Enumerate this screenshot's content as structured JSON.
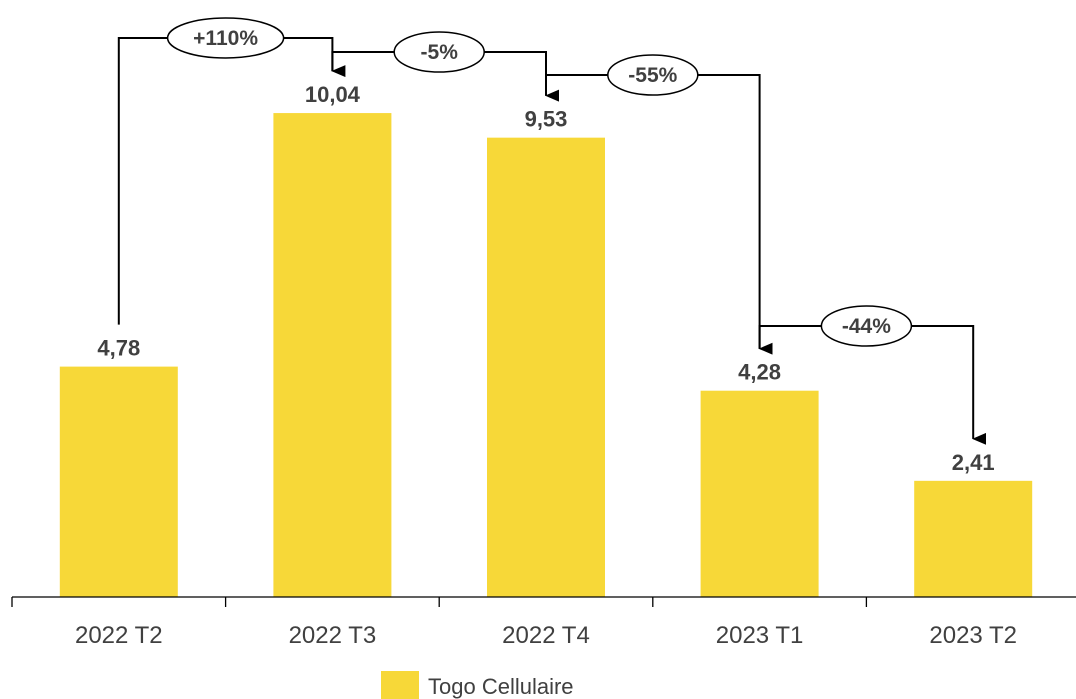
{
  "chart_data": {
    "type": "bar",
    "categories": [
      "2022 T2",
      "2022 T3",
      "2022 T4",
      "2023 T1",
      "2023 T2"
    ],
    "series": [
      {
        "name": "Togo Cellulaire",
        "values": [
          4.78,
          10.04,
          9.53,
          4.28,
          2.41
        ],
        "value_labels": [
          "4,78",
          "10,04",
          "9,53",
          "4,28",
          "2,41"
        ],
        "color": "#F7D838"
      }
    ],
    "changes": [
      {
        "from": 0,
        "to": 1,
        "label": "+110%"
      },
      {
        "from": 1,
        "to": 2,
        "label": "-5%"
      },
      {
        "from": 2,
        "to": 3,
        "label": "-55%"
      },
      {
        "from": 3,
        "to": 4,
        "label": "-44%"
      }
    ],
    "ylim": [
      0,
      12
    ],
    "grid": false,
    "legend_position": "bottom",
    "title": "",
    "xlabel": "",
    "ylabel": ""
  },
  "colors": {
    "bar": "#F7D838",
    "text": "#404040",
    "axis": "#000000"
  }
}
